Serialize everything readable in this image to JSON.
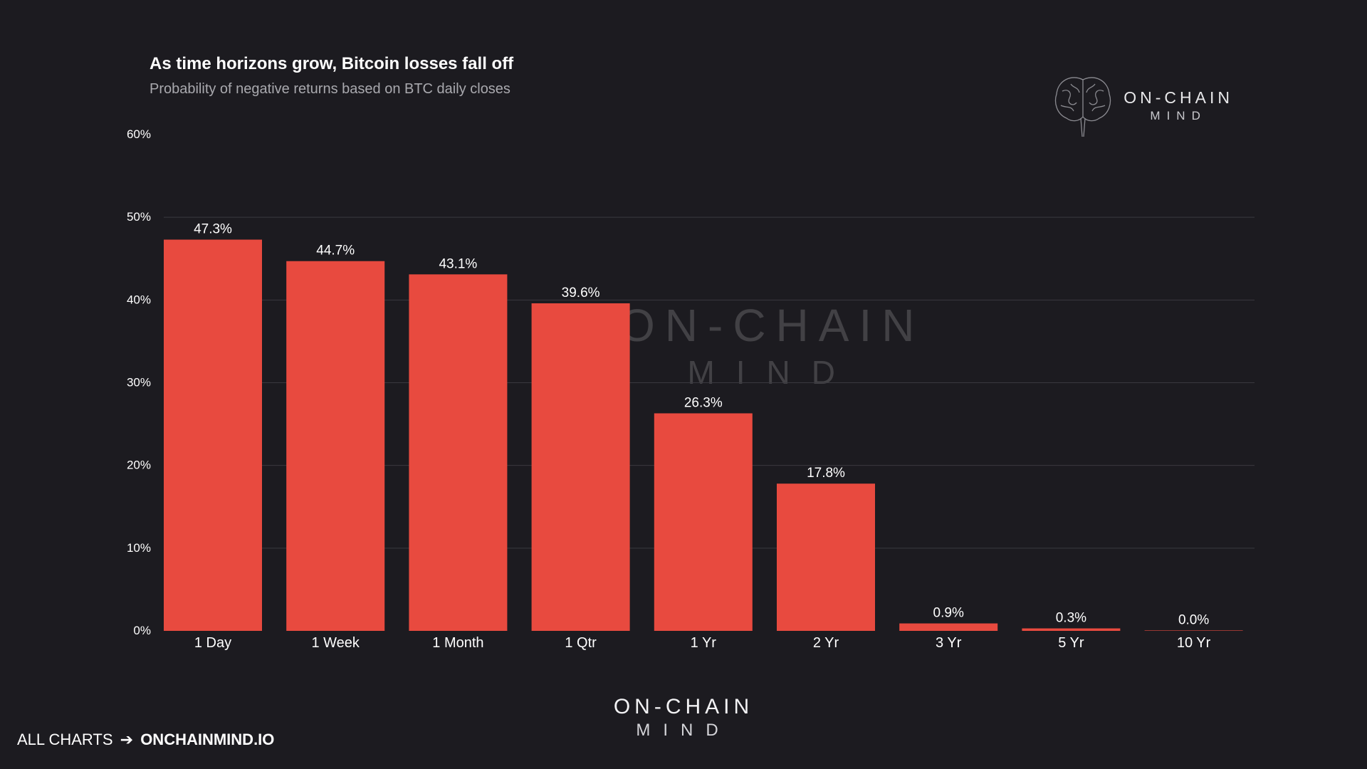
{
  "header": {
    "title": "As time horizons grow, Bitcoin losses fall off",
    "subtitle": "Probability of negative returns based on BTC daily closes"
  },
  "logo": {
    "line1": "ON-CHAIN",
    "line2": "MIND"
  },
  "watermark": {
    "line1": "ON-CHAIN",
    "line2": "MIND"
  },
  "footer": {
    "logo_line1": "ON-CHAIN",
    "logo_line2": "MIND",
    "link_prefix": "ALL CHARTS",
    "link_arrow": "➔",
    "link_site": "ONCHAINMIND.IO"
  },
  "colors": {
    "background": "#1c1b20",
    "bar": "#e84a3f",
    "grid": "#3a393f",
    "text": "#ffffff"
  },
  "chart_data": {
    "type": "bar",
    "title": "As time horizons grow, Bitcoin losses fall off",
    "subtitle": "Probability of negative returns based on BTC daily closes",
    "xlabel": "",
    "ylabel": "",
    "categories": [
      "1 Day",
      "1 Week",
      "1 Month",
      "1 Qtr",
      "1 Yr",
      "2 Yr",
      "3 Yr",
      "5 Yr",
      "10 Yr"
    ],
    "values": [
      47.3,
      44.7,
      43.1,
      39.6,
      26.3,
      17.8,
      0.9,
      0.3,
      0.0
    ],
    "data_labels": [
      "47.3%",
      "44.7%",
      "43.1%",
      "39.6%",
      "26.3%",
      "17.8%",
      "0.9%",
      "0.3%",
      "0.0%"
    ],
    "ylim": [
      0,
      60
    ],
    "yticks": [
      0,
      10,
      20,
      30,
      40,
      50,
      60
    ],
    "ytick_labels": [
      "0%",
      "10%",
      "20%",
      "30%",
      "40%",
      "50%",
      "60%"
    ],
    "grid": true
  }
}
